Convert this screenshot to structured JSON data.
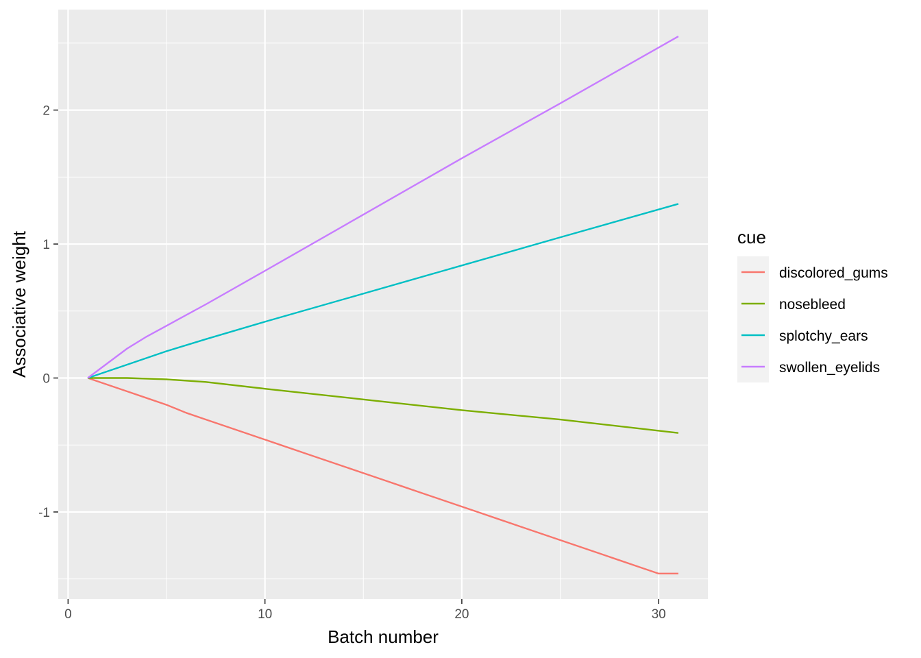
{
  "chart_data": {
    "type": "line",
    "xlabel": "Batch number",
    "ylabel": "Associative weight",
    "xlim": [
      -0.5,
      32.5
    ],
    "ylim": [
      -1.65,
      2.75
    ],
    "x_ticks": [
      0,
      10,
      20,
      30
    ],
    "x_tick_labels": [
      "0",
      "10",
      "20",
      "30"
    ],
    "y_ticks": [
      -1,
      0,
      1,
      2
    ],
    "y_tick_labels": [
      "-1",
      "0",
      "1",
      "2"
    ],
    "grid": true,
    "panel_background": "#ebebeb",
    "legend": {
      "title": "cue",
      "position": "right",
      "background": "#f2f2f2"
    },
    "series": [
      {
        "name": "discolored_gums",
        "color": "#F8766D",
        "x": [
          1,
          2,
          3,
          4,
          5,
          6,
          7,
          8,
          9,
          10,
          11,
          12,
          13,
          14,
          15,
          16,
          17,
          18,
          19,
          20,
          21,
          22,
          23,
          24,
          25,
          26,
          27,
          28,
          29,
          30,
          31
        ],
        "y": [
          0,
          -0.05,
          -0.1,
          -0.15,
          -0.2,
          -0.26,
          -0.31,
          -0.36,
          -0.41,
          -0.46,
          -0.51,
          -0.56,
          -0.61,
          -0.66,
          -0.71,
          -0.76,
          -0.81,
          -0.86,
          -0.91,
          -0.96,
          -1.01,
          -1.06,
          -1.11,
          -1.16,
          -1.21,
          -1.26,
          -1.31,
          -1.36,
          -1.41,
          -1.46,
          -1.46
        ]
      },
      {
        "name": "nosebleed",
        "color": "#7CAE00",
        "x": [
          1,
          3,
          5,
          7,
          10,
          15,
          20,
          25,
          31
        ],
        "y": [
          0,
          0,
          -0.01,
          -0.03,
          -0.08,
          -0.16,
          -0.24,
          -0.31,
          -0.41
        ]
      },
      {
        "name": "splotchy_ears",
        "color": "#00BFC4",
        "x": [
          1,
          3,
          5,
          7,
          10,
          15,
          20,
          25,
          31
        ],
        "y": [
          0,
          0.1,
          0.2,
          0.29,
          0.42,
          0.63,
          0.84,
          1.05,
          1.3
        ]
      },
      {
        "name": "swollen_eyelids",
        "color": "#C77CFF",
        "x": [
          1,
          2,
          3,
          4,
          5,
          7,
          10,
          15,
          20,
          25,
          31
        ],
        "y": [
          0,
          0.11,
          0.22,
          0.31,
          0.39,
          0.55,
          0.8,
          1.22,
          1.64,
          2.05,
          2.55
        ]
      }
    ]
  }
}
